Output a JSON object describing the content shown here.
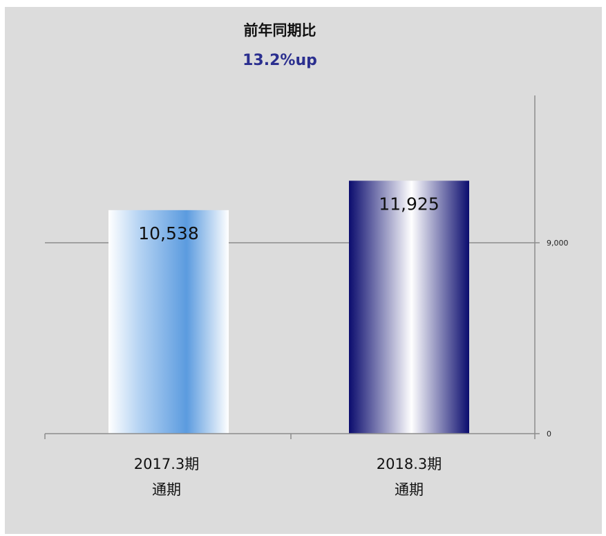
{
  "chart_data": {
    "type": "bar",
    "title": "前年同期比",
    "subtitle": "13.2%up",
    "categories": [
      [
        "2017.3期",
        "通期"
      ],
      [
        "2018.3期",
        "通期"
      ]
    ],
    "values": [
      10538,
      11925
    ],
    "value_labels": [
      "10,538",
      "11,925"
    ],
    "y_axis": {
      "position": "right",
      "ticks": [
        0,
        9000
      ],
      "tick_labels": [
        "0",
        "9,000"
      ],
      "ylim": [
        0,
        13000
      ]
    },
    "grid": true,
    "colors": {
      "panel_background": "#dcdcdc",
      "subtitle": "#2b2f8f",
      "bar_2017": "#5b9bdf",
      "bar_2018": "#0b0c6e",
      "gridline": "#8c8c8c"
    }
  }
}
